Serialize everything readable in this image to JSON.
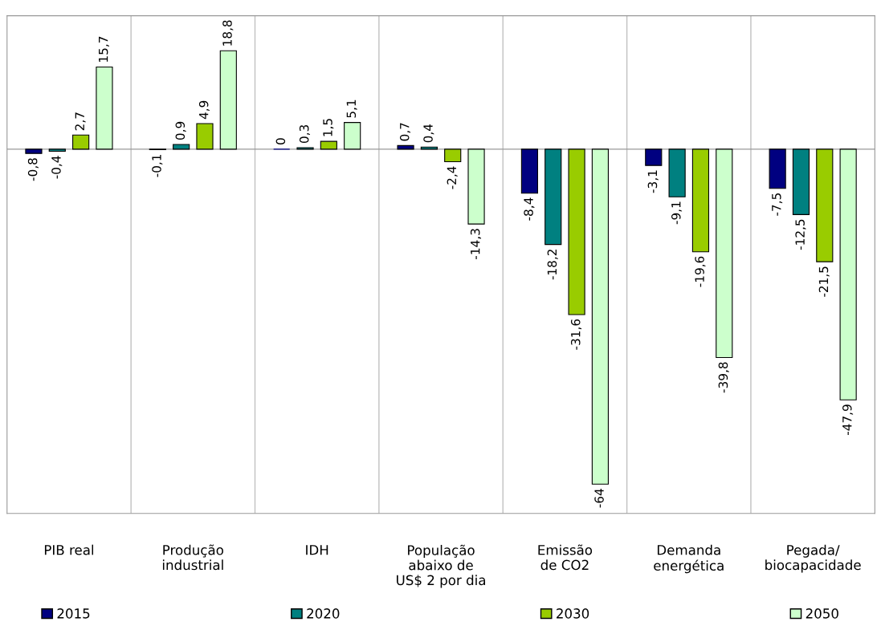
{
  "chart_data": {
    "type": "bar",
    "categories": [
      "PIB real",
      "Produção\nindustrial",
      "IDH",
      "População\nabaixo de\nUS$ 2 por dia",
      "Emissão\nde CO2",
      "Demanda\nenergética",
      "Pegada/\nbiocapacidade"
    ],
    "series": [
      {
        "name": "2015",
        "color": "#000080",
        "values": [
          -0.8,
          -0.1,
          0,
          0.7,
          -8.4,
          -3.1,
          -7.5
        ],
        "value_labels": [
          "-0,8",
          "-0,1",
          "0",
          "0,7",
          "-8,4",
          "-3,1",
          "-7,5"
        ]
      },
      {
        "name": "2020",
        "color": "#008080",
        "values": [
          -0.4,
          0.9,
          0.3,
          0.4,
          -18.2,
          -9.1,
          -12.5
        ],
        "value_labels": [
          "-0,4",
          "0,9",
          "0,3",
          "0,4",
          "-18,2",
          "-9,1",
          "-12,5"
        ]
      },
      {
        "name": "2030",
        "color": "#99cc00",
        "values": [
          2.7,
          4.9,
          1.5,
          -2.4,
          -31.6,
          -19.6,
          -21.5
        ],
        "value_labels": [
          "2,7",
          "4,9",
          "1,5",
          "-2,4",
          "-31,6",
          "-19,6",
          "-21,5"
        ]
      },
      {
        "name": "2050",
        "color": "#ccffcc",
        "values": [
          15.7,
          18.8,
          5.1,
          -14.3,
          -64,
          -39.8,
          -47.9
        ],
        "value_labels": [
          "15,7",
          "18,8",
          "5,1",
          "-14,3",
          "-64",
          "-39,8",
          "-47,9"
        ]
      }
    ],
    "ylim": [
      -69.6,
      25.5
    ],
    "grid": "x",
    "legend": "bottom"
  }
}
